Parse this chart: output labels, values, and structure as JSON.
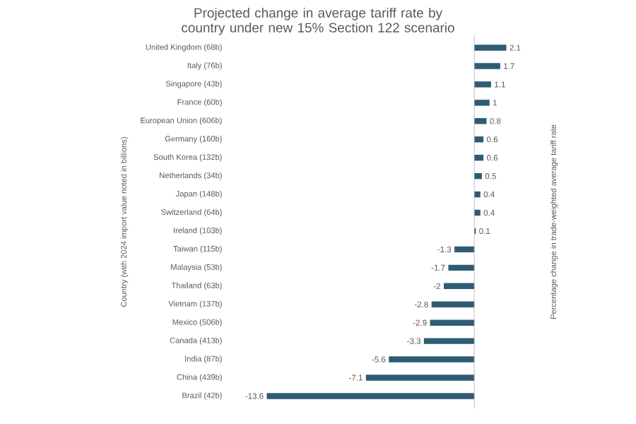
{
  "chart_data": {
    "type": "bar",
    "orientation": "horizontal",
    "title": "Projected change in average tariff rate by country under new 15% Section 122 scenario",
    "ylabel": "Country (with 2024 import value noted in billions)",
    "annotations": [
      "Percentage change in trade-weighted average tariff rate"
    ],
    "categories": [
      "United Kingdom (68b)",
      "Italy (76b)",
      "Singapore (43b)",
      "France (60b)",
      "European Union (606b)",
      "Germany (160b)",
      "South Korea (132b)",
      "Netherlands (34b)",
      "Japan (148b)",
      "Switzerland (64b)",
      "Ireland (103b)",
      "Taiwan (115b)",
      "Malaysia (53b)",
      "Thailand (63b)",
      "Vietnam (137b)",
      "Mexico (506b)",
      "Canada (413b)",
      "India (87b)",
      "China (439b)",
      "Brazil (42b)"
    ],
    "values": [
      2.1,
      1.7,
      1.1,
      1,
      0.8,
      0.6,
      0.6,
      0.5,
      0.4,
      0.4,
      0.1,
      -1.3,
      -1.7,
      -2,
      -2.8,
      -2.9,
      -3.3,
      -5.6,
      -7.1,
      -13.6
    ],
    "color": "#2e5c73",
    "data_labels": true,
    "tick_labels": "y"
  }
}
